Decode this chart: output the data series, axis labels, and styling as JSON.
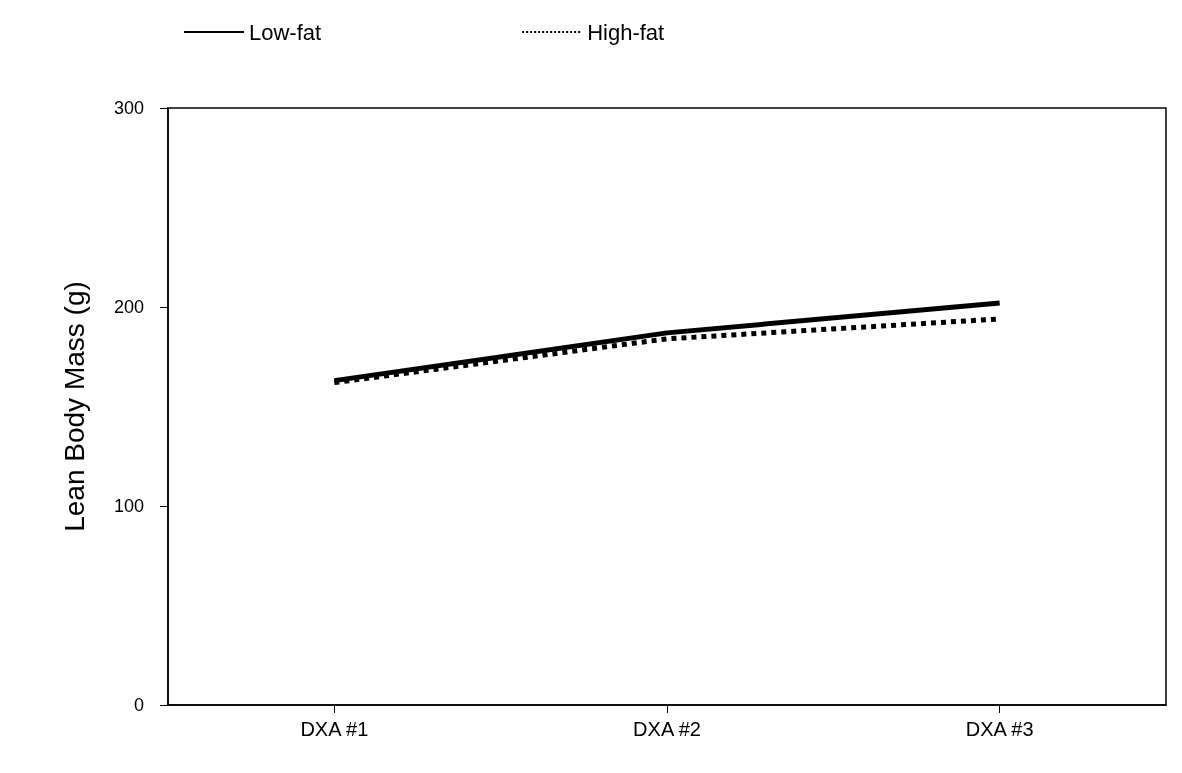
{
  "chart_data": {
    "type": "line",
    "ylabel": "Lean Body Mass (g)",
    "categories": [
      "DXA #1",
      "DXA #2",
      "DXA #3"
    ],
    "series": [
      {
        "name": "Low-fat",
        "color": "#000000",
        "values": [
          163,
          187,
          202
        ],
        "line_style": "solid"
      },
      {
        "name": "High-fat",
        "color": "#000000",
        "values": [
          162,
          184,
          194
        ],
        "line_style": "dotted"
      }
    ],
    "ylim": [
      0,
      300
    ],
    "yticks": [
      0,
      100,
      200,
      300
    ],
    "grid": false,
    "legend": "top left",
    "marker": "none"
  }
}
